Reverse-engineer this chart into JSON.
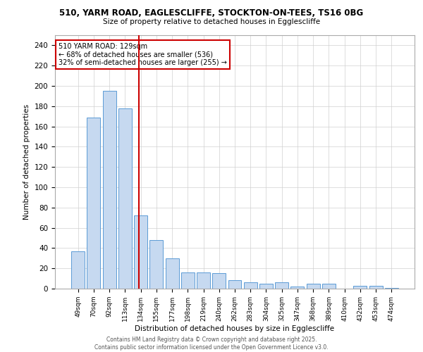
{
  "title1": "510, YARM ROAD, EAGLESCLIFFE, STOCKTON-ON-TEES, TS16 0BG",
  "title2": "Size of property relative to detached houses in Egglescliffe",
  "xlabel": "Distribution of detached houses by size in Egglescliffe",
  "ylabel": "Number of detached properties",
  "categories": [
    "49sqm",
    "70sqm",
    "92sqm",
    "113sqm",
    "134sqm",
    "155sqm",
    "177sqm",
    "198sqm",
    "219sqm",
    "240sqm",
    "262sqm",
    "283sqm",
    "304sqm",
    "325sqm",
    "347sqm",
    "368sqm",
    "389sqm",
    "410sqm",
    "432sqm",
    "453sqm",
    "474sqm"
  ],
  "values": [
    37,
    169,
    195,
    178,
    72,
    48,
    30,
    16,
    16,
    15,
    8,
    6,
    5,
    6,
    2,
    5,
    5,
    0,
    3,
    3,
    1
  ],
  "bar_color": "#c6d9f0",
  "bar_edge_color": "#5b9bd5",
  "red_line_x": 3.9,
  "annotation_title": "510 YARM ROAD: 129sqm",
  "annotation_line1": "← 68% of detached houses are smaller (536)",
  "annotation_line2": "32% of semi-detached houses are larger (255) →",
  "annotation_box_color": "#ffffff",
  "annotation_box_edge": "#cc0000",
  "red_line_color": "#cc0000",
  "ylim": [
    0,
    250
  ],
  "yticks": [
    0,
    20,
    40,
    60,
    80,
    100,
    120,
    140,
    160,
    180,
    200,
    220,
    240
  ],
  "grid_color": "#d0d0d0",
  "bg_color": "#ffffff",
  "footer1": "Contains HM Land Registry data © Crown copyright and database right 2025.",
  "footer2": "Contains public sector information licensed under the Open Government Licence v3.0."
}
